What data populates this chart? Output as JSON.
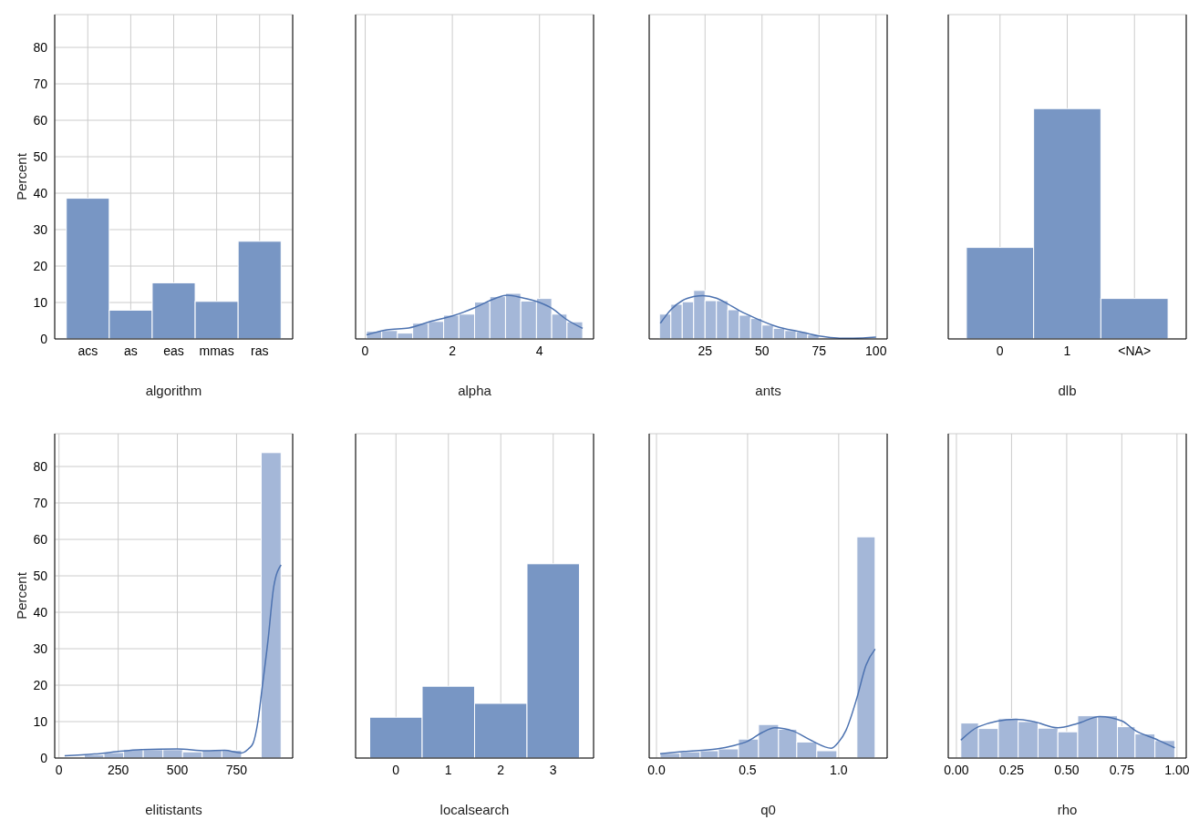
{
  "chart_data": [
    {
      "type": "bar",
      "xlabel": "algorithm",
      "ylabel": "Percent",
      "categories": [
        "acs",
        "as",
        "eas",
        "mmas",
        "ras"
      ],
      "values": [
        38.6,
        7.9,
        15.4,
        10.3,
        26.8
      ],
      "color": "#7896c4",
      "ylim": [
        0,
        89
      ],
      "yticks": [
        0,
        10,
        20,
        30,
        40,
        50,
        60,
        70,
        80
      ],
      "grid": true
    },
    {
      "type": "histogram",
      "xlabel": "alpha",
      "xlim": [
        -0.22,
        5.24
      ],
      "xticks": [
        0,
        2,
        4
      ],
      "ylim": [
        0,
        89
      ],
      "yticks": [
        0,
        10,
        20,
        30,
        40,
        50,
        60,
        70,
        80
      ],
      "tick_labels": "x",
      "grid": true,
      "series": [
        {
          "type": "histogram",
          "color": "#a4b7d8",
          "bins": [
            0.03,
            0.38,
            0.74,
            1.09,
            1.45,
            1.8,
            2.15,
            2.51,
            2.86,
            3.22,
            3.57,
            3.93,
            4.28,
            4.63,
            4.99
          ],
          "values": [
            2.1,
            2.3,
            1.6,
            4.3,
            4.8,
            6.5,
            6.8,
            10.1,
            11.6,
            12.5,
            10.4,
            11.1,
            6.8,
            4.7
          ]
        },
        {
          "type": "line",
          "color": "#4c72b0",
          "x": [
            0.03,
            0.5,
            1.0,
            1.5,
            2.0,
            2.5,
            3.0,
            3.26,
            3.6,
            4.0,
            4.3,
            4.6,
            4.99
          ],
          "values": [
            1.1,
            2.5,
            3.0,
            4.8,
            6.3,
            8.5,
            11.2,
            12.0,
            11.3,
            10.0,
            8.3,
            5.5,
            2.9
          ]
        }
      ]
    },
    {
      "type": "histogram",
      "xlabel": "ants",
      "xlim": [
        0.5,
        104.9
      ],
      "xticks": [
        25,
        50,
        75,
        100
      ],
      "ylim": [
        0,
        89
      ],
      "yticks": [
        0,
        10,
        20,
        30,
        40,
        50,
        60,
        70,
        80
      ],
      "tick_labels": "x",
      "grid": true,
      "series": [
        {
          "type": "histogram",
          "color": "#a4b7d8",
          "bins": [
            5,
            10,
            15,
            20,
            25,
            30,
            35,
            40,
            45,
            50,
            55,
            60,
            65,
            70,
            75,
            80,
            85,
            90,
            95,
            100
          ],
          "values": [
            6.8,
            9.5,
            10.2,
            13.3,
            10.5,
            10.5,
            8.0,
            6.5,
            5.6,
            3.8,
            2.9,
            2.3,
            1.9,
            1.1,
            null,
            null,
            0.3,
            0.3,
            null
          ]
        },
        {
          "type": "line",
          "color": "#4c72b0",
          "x": [
            5.4,
            10,
            15,
            20,
            24,
            30,
            35,
            40,
            45,
            50,
            55,
            60,
            65,
            70,
            75,
            80,
            85,
            90,
            100
          ],
          "values": [
            4.3,
            8.0,
            10.5,
            11.6,
            11.9,
            11.2,
            9.6,
            7.8,
            6.3,
            4.9,
            3.7,
            2.8,
            2.2,
            1.5,
            0.8,
            0.4,
            0.2,
            0.2,
            0.5
          ]
        }
      ]
    },
    {
      "type": "bar",
      "xlabel": "dlb",
      "categories": [
        "0",
        "1",
        "<NA>"
      ],
      "values": [
        25.1,
        63.2,
        11.1
      ],
      "color": "#7896c4",
      "ylim": [
        0,
        89
      ],
      "yticks": [
        0,
        10,
        20,
        30,
        40,
        50,
        60,
        70,
        80
      ],
      "tick_labels": "x",
      "grid": true
    },
    {
      "type": "histogram",
      "xlabel": "elitistants",
      "ylabel": "Percent",
      "xlim": [
        -18,
        987
      ],
      "xticks": [
        0,
        250,
        500,
        750
      ],
      "ylim": [
        0,
        89
      ],
      "yticks": [
        0,
        10,
        20,
        30,
        40,
        50,
        60,
        70,
        80
      ],
      "grid": true,
      "series": [
        {
          "type": "histogram",
          "color": "#a4b7d8",
          "bins": [
            24,
            107,
            190,
            273,
            356,
            439,
            522,
            605,
            688,
            771,
            854,
            938
          ],
          "values": [
            null,
            0.9,
            1.5,
            2.3,
            2.3,
            2.3,
            1.7,
            2.1,
            2.1,
            0,
            83.8
          ]
        },
        {
          "type": "line",
          "color": "#4c72b0",
          "x": [
            24,
            150,
            250,
            350,
            500,
            620,
            700,
            770,
            800,
            820,
            840,
            857,
            883,
            907,
            938
          ],
          "values": [
            0.6,
            1.1,
            1.8,
            2.3,
            2.5,
            2.0,
            2.1,
            1.4,
            2.5,
            4.1,
            10,
            18.7,
            32.4,
            47,
            53
          ]
        }
      ]
    },
    {
      "type": "bar",
      "xlabel": "localsearch",
      "categories": [
        "0",
        "1",
        "2",
        "3"
      ],
      "values": [
        11.2,
        19.7,
        15.0,
        53.3
      ],
      "color": "#7896c4",
      "ylim": [
        0,
        89
      ],
      "yticks": [
        0,
        10,
        20,
        30,
        40,
        50,
        60,
        70,
        80
      ],
      "tick_labels": "x",
      "grid": true
    },
    {
      "type": "histogram",
      "xlabel": "q0",
      "xlim": [
        -0.04,
        1.266
      ],
      "xticks": [
        {
          "value": 0,
          "label": "0.0"
        },
        {
          "value": 0.5,
          "label": "0.5"
        },
        {
          "value": 1,
          "label": "1.0"
        }
      ],
      "ylim": [
        0,
        89
      ],
      "yticks": [
        0,
        10,
        20,
        30,
        40,
        50,
        60,
        70,
        80
      ],
      "tick_labels": "x",
      "grid": true,
      "series": [
        {
          "type": "histogram",
          "color": "#a4b7d8",
          "bins": [
            0.02,
            0.13,
            0.24,
            0.34,
            0.45,
            0.56,
            0.67,
            0.77,
            0.88,
            0.99,
            1.1,
            1.2
          ],
          "values": [
            1.3,
            1.7,
            2.0,
            2.5,
            5.2,
            9.2,
            7.9,
            4.4,
            2.0,
            0,
            60.7
          ]
        },
        {
          "type": "line",
          "color": "#4c72b0",
          "x": [
            0.02,
            0.15,
            0.33,
            0.42,
            0.5,
            0.58,
            0.65,
            0.75,
            0.85,
            0.96,
            1.0,
            1.04,
            1.1,
            1.15,
            1.2
          ],
          "values": [
            1.2,
            1.8,
            2.5,
            3.4,
            4.6,
            7.0,
            8.3,
            7.4,
            4.8,
            2.7,
            4.4,
            7.6,
            16.5,
            25.5,
            29.9
          ]
        }
      ]
    },
    {
      "type": "histogram",
      "xlabel": "rho",
      "xlim": [
        -0.037,
        1.042
      ],
      "xticks": [
        {
          "value": 0,
          "label": "0.00"
        },
        {
          "value": 0.25,
          "label": "0.25"
        },
        {
          "value": 0.5,
          "label": "0.50"
        },
        {
          "value": 0.75,
          "label": "0.75"
        },
        {
          "value": 1,
          "label": "1.00"
        }
      ],
      "ylim": [
        0,
        89
      ],
      "yticks": [
        0,
        10,
        20,
        30,
        40,
        50,
        60,
        70,
        80
      ],
      "tick_labels": "x",
      "grid": true,
      "series": [
        {
          "type": "histogram",
          "color": "#a4b7d8",
          "bins": [
            0.02,
            0.1,
            0.19,
            0.28,
            0.37,
            0.46,
            0.55,
            0.64,
            0.73,
            0.81,
            0.9,
            0.99
          ],
          "values": [
            9.6,
            8.1,
            10.8,
            10.0,
            8.2,
            7.2,
            11.6,
            11.6,
            8.6,
            6.6,
            4.8
          ]
        },
        {
          "type": "line",
          "color": "#4c72b0",
          "x": [
            0.02,
            0.1,
            0.27,
            0.35,
            0.46,
            0.55,
            0.65,
            0.75,
            0.81,
            0.9,
            0.99
          ],
          "values": [
            4.9,
            8.6,
            10.6,
            10.0,
            8.3,
            9.5,
            11.4,
            10.2,
            7.6,
            5.3,
            2.8
          ]
        }
      ]
    }
  ]
}
